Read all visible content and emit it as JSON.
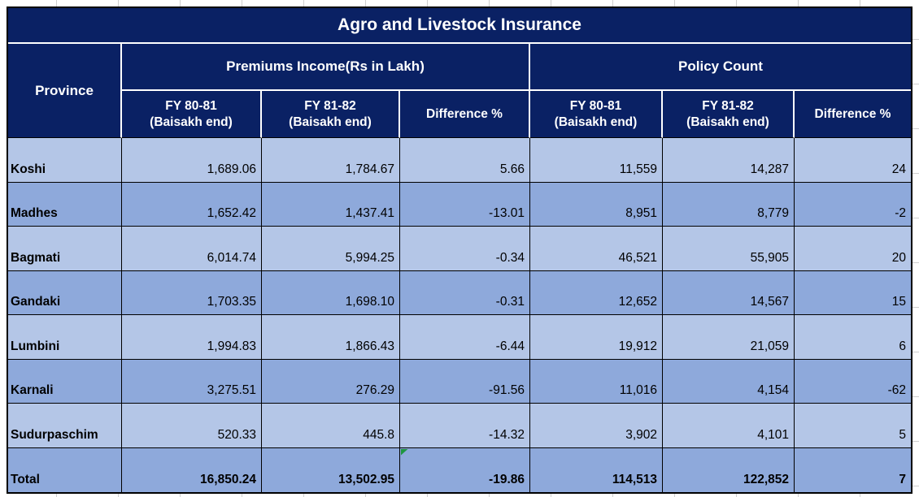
{
  "title": "Agro and Livestock Insurance",
  "headers": {
    "province": "Province",
    "premiums_group": "Premiums Income(Rs in Lakh)",
    "policy_group": "Policy Count",
    "fy1_l1": "FY 80-81",
    "fy1_l2": "(Baisakh end)",
    "fy2_l1": "FY 81-82",
    "fy2_l2": "(Baisakh end)",
    "diff": "Difference %"
  },
  "rows": [
    {
      "province": "Koshi",
      "p_fy1": "1,689.06",
      "p_fy2": "1,784.67",
      "p_diff": "5.66",
      "c_fy1": "11,559",
      "c_fy2": "14,287",
      "c_diff": "24"
    },
    {
      "province": "Madhes",
      "p_fy1": "1,652.42",
      "p_fy2": "1,437.41",
      "p_diff": "-13.01",
      "c_fy1": "8,951",
      "c_fy2": "8,779",
      "c_diff": "-2"
    },
    {
      "province": "Bagmati",
      "p_fy1": "6,014.74",
      "p_fy2": "5,994.25",
      "p_diff": "-0.34",
      "c_fy1": "46,521",
      "c_fy2": "55,905",
      "c_diff": "20"
    },
    {
      "province": "Gandaki",
      "p_fy1": "1,703.35",
      "p_fy2": "1,698.10",
      "p_diff": "-0.31",
      "c_fy1": "12,652",
      "c_fy2": "14,567",
      "c_diff": "15"
    },
    {
      "province": "Lumbini",
      "p_fy1": "1,994.83",
      "p_fy2": "1,866.43",
      "p_diff": "-6.44",
      "c_fy1": "19,912",
      "c_fy2": "21,059",
      "c_diff": "6"
    },
    {
      "province": "Karnali",
      "p_fy1": "3,275.51",
      "p_fy2": "276.29",
      "p_diff": "-91.56",
      "c_fy1": "11,016",
      "c_fy2": "4,154",
      "c_diff": "-62"
    },
    {
      "province": "Sudurpaschim",
      "p_fy1": "520.33",
      "p_fy2": "445.8",
      "p_diff": "-14.32",
      "c_fy1": "3,902",
      "c_fy2": "4,101",
      "c_diff": "5"
    },
    {
      "province": "Total",
      "p_fy1": "16,850.24",
      "p_fy2": "13,502.95",
      "p_diff": "-19.86",
      "c_fy1": "114,513",
      "c_fy2": "122,852",
      "c_diff": "7"
    }
  ],
  "colors": {
    "header_bg": "#0A2164",
    "row_light": "#B4C6E7",
    "row_mid": "#8EA9DB",
    "table_border": "#000000",
    "header_divider": "#FFFFFF",
    "error_indicator_green": "#1E9640",
    "sheet_gridline": "#CFCFCF"
  }
}
